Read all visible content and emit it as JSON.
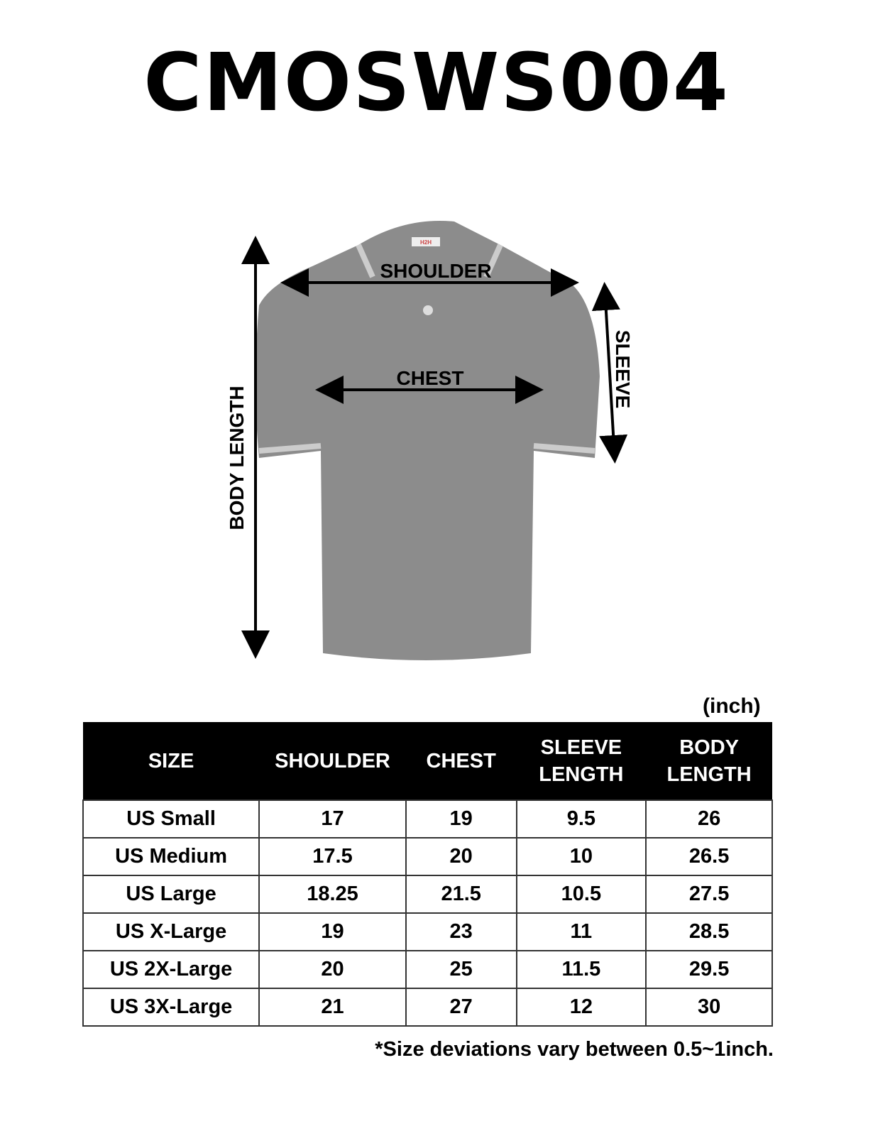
{
  "title": "CMOSWS004",
  "diagram": {
    "shoulder": "SHOULDER",
    "chest": "CHEST",
    "sleeve": "SLEEVE",
    "body_length": "BODY LENGTH",
    "shirt_color": "#8c8c8c",
    "label_brand": "H2H"
  },
  "unit": "(inch)",
  "table": {
    "headers": [
      "SIZE",
      "SHOULDER",
      "CHEST",
      "SLEEVE LENGTH",
      "BODY LENGTH"
    ],
    "rows": [
      [
        "US Small",
        "17",
        "19",
        "9.5",
        "26"
      ],
      [
        "US Medium",
        "17.5",
        "20",
        "10",
        "26.5"
      ],
      [
        "US Large",
        "18.25",
        "21.5",
        "10.5",
        "27.5"
      ],
      [
        "US X-Large",
        "19",
        "23",
        "11",
        "28.5"
      ],
      [
        "US 2X-Large",
        "20",
        "25",
        "11.5",
        "29.5"
      ],
      [
        "US 3X-Large",
        "21",
        "27",
        "12",
        "30"
      ]
    ]
  },
  "note": "*Size deviations vary between 0.5~1inch."
}
